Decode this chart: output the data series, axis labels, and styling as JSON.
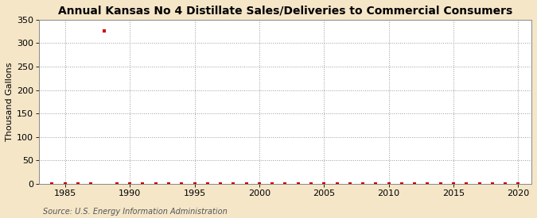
{
  "title": "Annual Kansas No 4 Distillate Sales/Deliveries to Commercial Consumers",
  "ylabel": "Thousand Gallons",
  "source_text": "Source: U.S. Energy Information Administration",
  "figure_bg_color": "#f5e6c8",
  "plot_bg_color": "#ffffff",
  "x_min": 1983,
  "x_max": 2021,
  "y_min": 0,
  "y_max": 350,
  "y_ticks": [
    0,
    50,
    100,
    150,
    200,
    250,
    300,
    350
  ],
  "x_ticks": [
    1985,
    1990,
    1995,
    2000,
    2005,
    2010,
    2015,
    2020
  ],
  "data_years": [
    1984,
    1985,
    1986,
    1987,
    1988,
    1989,
    1990,
    1991,
    1992,
    1993,
    1994,
    1995,
    1996,
    1997,
    1998,
    1999,
    2000,
    2001,
    2002,
    2003,
    2004,
    2005,
    2006,
    2007,
    2008,
    2009,
    2010,
    2011,
    2012,
    2013,
    2014,
    2015,
    2016,
    2017,
    2018,
    2019,
    2020
  ],
  "data_values": [
    0,
    0,
    0,
    0,
    326,
    0,
    0,
    0,
    0,
    0,
    0,
    0,
    0,
    0,
    0,
    0,
    0,
    0,
    0,
    0,
    0,
    0,
    0,
    0,
    0,
    0,
    0,
    0,
    0,
    0,
    0,
    0,
    0,
    0,
    0,
    0,
    0
  ],
  "marker_color": "#cc0000",
  "marker_size": 3,
  "grid_color": "#999999",
  "title_fontsize": 10,
  "ylabel_fontsize": 8,
  "tick_fontsize": 8,
  "source_fontsize": 7
}
